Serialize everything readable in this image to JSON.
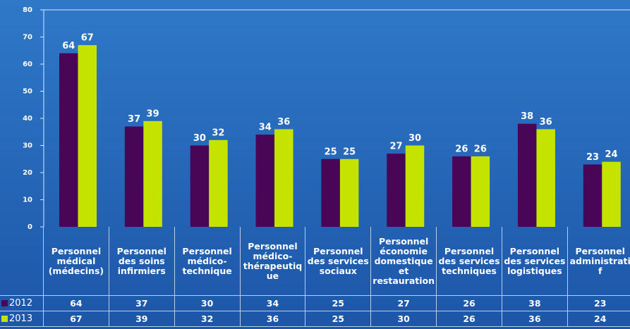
{
  "chart_data": {
    "type": "bar",
    "categories": [
      "Personnel médical (médecins)",
      "Personnel des soins infirmiers",
      "Personnel médico-technique",
      "Personnel médico-thérapeutique",
      "Personnel des services sociaux",
      "Personnel économie domestique et restauration",
      "Personnel des services techniques",
      "Personnel des services logistiques",
      "Personnel administratif"
    ],
    "series": [
      {
        "name": "2012",
        "color": "#4a0656",
        "values": [
          64,
          37,
          30,
          34,
          25,
          27,
          26,
          38,
          23
        ]
      },
      {
        "name": "2013",
        "color": "#c4e400",
        "values": [
          67,
          39,
          32,
          36,
          25,
          30,
          26,
          36,
          24
        ]
      }
    ],
    "ylim": [
      0,
      80
    ],
    "yticks": [
      0,
      10,
      20,
      30,
      40,
      50,
      60,
      70,
      80
    ],
    "grid": false
  }
}
